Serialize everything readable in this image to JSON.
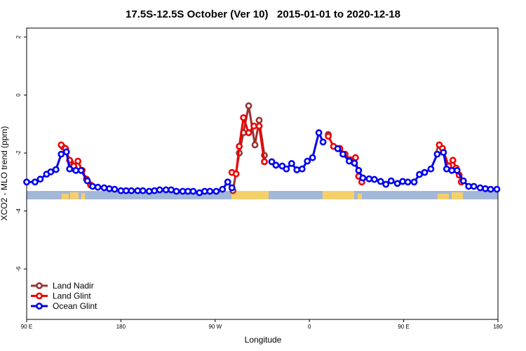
{
  "chart_data": {
    "type": "line",
    "title": "17.5S-12.5S October (Ver 10)   2015-01-01 to 2020-12-18",
    "x_label": "Longitude",
    "y_label": "XCO2 - MLO trend (ppm)",
    "xlim": [
      90,
      540
    ],
    "xticks": [
      {
        "value": 90,
        "label": "90 E"
      },
      {
        "value": 180,
        "label": "180"
      },
      {
        "value": 270,
        "label": "90 W"
      },
      {
        "value": 360,
        "label": "0"
      },
      {
        "value": 450,
        "label": "90 E"
      },
      {
        "value": 540,
        "label": "180"
      }
    ],
    "ylim": [
      -7.74,
      2.31
    ],
    "yticks": [
      -6,
      -4,
      -2,
      0,
      2
    ],
    "legend": "bottom-left",
    "series": [
      {
        "name": "Land Nadir",
        "color": "#993333",
        "x": [
          125,
          132,
          136,
          null,
          287,
          293,
          297,
          302,
          308,
          312,
          317,
          null,
          378,
          null,
          484
        ],
        "values": [
          -1.8,
          -2.33,
          -2.57,
          null,
          -3.3,
          -2.0,
          -1.3,
          -0.37,
          -1.72,
          -0.87,
          -2.08,
          null,
          -1.36,
          null,
          -1.9
        ]
      },
      {
        "name": "Land Glint",
        "color": "#ee0000",
        "x": [
          123,
          127,
          131,
          135,
          139,
          143,
          147,
          151,
          null,
          286,
          290,
          293,
          297,
          302,
          307,
          312,
          317,
          null,
          378,
          383,
          389,
          394,
          399,
          404,
          407,
          410,
          null,
          484,
          487,
          493,
          497,
          500,
          503,
          505
        ],
        "values": [
          -1.72,
          -1.84,
          -2.25,
          -2.45,
          -2.28,
          -2.6,
          -2.9,
          -3.1,
          null,
          -2.67,
          -2.72,
          -1.77,
          -0.78,
          -1.3,
          -1.07,
          -1.07,
          -2.3,
          null,
          -1.42,
          -1.77,
          -1.84,
          -2.04,
          -2.23,
          -2.16,
          -2.8,
          -3.0,
          null,
          -1.72,
          -1.84,
          -2.45,
          -2.25,
          -2.52,
          -2.76,
          -3.0
        ]
      },
      {
        "name": "Ocean Glint",
        "color": "#0000ee",
        "x": [
          90,
          98,
          103,
          109,
          113,
          118,
          123,
          128,
          131,
          137,
          142,
          148,
          153,
          158,
          164,
          169,
          174,
          180,
          185,
          190,
          196,
          201,
          207,
          212,
          217,
          223,
          228,
          233,
          239,
          244,
          249,
          255,
          260,
          265,
          271,
          277,
          282,
          286,
          null,
          324,
          328,
          334,
          338,
          343,
          348,
          353,
          358,
          363,
          369,
          373,
          null,
          387,
          392,
          398,
          403,
          407,
          411,
          417,
          422,
          428,
          433,
          438,
          444,
          449,
          454,
          460,
          465,
          470,
          476,
          482,
          488,
          491,
          496,
          501,
          507,
          512,
          517,
          523,
          528,
          533,
          539
        ],
        "values": [
          -3.0,
          -3.0,
          -2.9,
          -2.73,
          -2.65,
          -2.57,
          -2.04,
          -1.96,
          -2.55,
          -2.6,
          -2.6,
          -2.96,
          -3.15,
          -3.18,
          -3.2,
          -3.23,
          -3.25,
          -3.3,
          -3.3,
          -3.3,
          -3.3,
          -3.3,
          -3.32,
          -3.3,
          -3.27,
          -3.27,
          -3.27,
          -3.32,
          -3.32,
          -3.32,
          -3.32,
          -3.37,
          -3.32,
          -3.32,
          -3.32,
          -3.25,
          -3.0,
          -3.2,
          null,
          -2.3,
          -2.42,
          -2.45,
          -2.55,
          -2.36,
          -2.58,
          -2.55,
          -2.28,
          -2.16,
          -1.3,
          -1.62,
          null,
          -1.85,
          -2.04,
          -2.28,
          -2.35,
          -2.6,
          -2.86,
          -2.89,
          -2.91,
          -2.98,
          -3.08,
          -2.96,
          -3.05,
          -2.98,
          -3.0,
          -3.0,
          -2.74,
          -2.67,
          -2.55,
          -2.04,
          -1.98,
          -2.55,
          -2.6,
          -2.6,
          -2.96,
          -3.15,
          -3.15,
          -3.2,
          -3.23,
          -3.25,
          -3.25
        ]
      }
    ]
  }
}
